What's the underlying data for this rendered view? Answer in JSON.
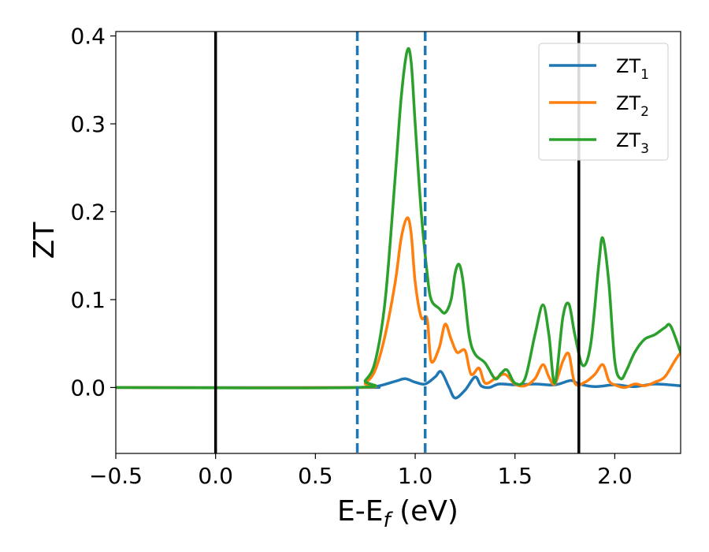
{
  "chart_data": {
    "type": "line",
    "xlabel": "E-E",
    "xlabel_sub": "f",
    "xlabel_unit": " (eV)",
    "ylabel": "ZT",
    "xlim": [
      -0.5,
      2.33
    ],
    "ylim": [
      -0.075,
      0.405
    ],
    "xticks": [
      {
        "value": -0.5,
        "label": "−0.5"
      },
      {
        "value": 0.0,
        "label": "0.0"
      },
      {
        "value": 0.5,
        "label": "0.5"
      },
      {
        "value": 1.0,
        "label": "1.0"
      },
      {
        "value": 1.5,
        "label": "1.5"
      },
      {
        "value": 2.0,
        "label": "2.0"
      }
    ],
    "yticks": [
      {
        "value": 0.0,
        "label": "0.0"
      },
      {
        "value": 0.1,
        "label": "0.1"
      },
      {
        "value": 0.2,
        "label": "0.2"
      },
      {
        "value": 0.3,
        "label": "0.3"
      },
      {
        "value": 0.4,
        "label": "0.4"
      }
    ],
    "grid": false,
    "legend_position": "top-right",
    "vlines": [
      {
        "x": 0.0,
        "color": "#000000",
        "style": "solid"
      },
      {
        "x": 1.82,
        "color": "#000000",
        "style": "solid"
      },
      {
        "x": 0.71,
        "color": "#1f77b4",
        "style": "dashed"
      },
      {
        "x": 1.05,
        "color": "#1f77b4",
        "style": "dashed"
      }
    ],
    "series": [
      {
        "name": "ZT",
        "sub": "1",
        "color": "#1f77b4",
        "x": [
          -0.5,
          0.7,
          0.8,
          0.9,
          0.95,
          1.0,
          1.05,
          1.1,
          1.13,
          1.17,
          1.2,
          1.25,
          1.3,
          1.33,
          1.37,
          1.42,
          1.5,
          1.6,
          1.7,
          1.78,
          1.82,
          1.9,
          2.0,
          2.1,
          2.2,
          2.33
        ],
        "y": [
          0.0,
          0.0,
          0.001,
          0.007,
          0.01,
          0.006,
          0.004,
          0.012,
          0.018,
          0.0,
          -0.012,
          -0.003,
          0.012,
          0.002,
          0.0,
          0.004,
          0.003,
          0.004,
          0.003,
          0.008,
          0.004,
          0.001,
          0.003,
          0.001,
          0.004,
          0.002
        ]
      },
      {
        "name": "ZT",
        "sub": "2",
        "color": "#ff7f0e",
        "x": [
          -0.5,
          0.7,
          0.75,
          0.8,
          0.85,
          0.9,
          0.93,
          0.96,
          0.98,
          1.0,
          1.03,
          1.06,
          1.08,
          1.12,
          1.15,
          1.18,
          1.21,
          1.25,
          1.28,
          1.32,
          1.35,
          1.4,
          1.45,
          1.5,
          1.55,
          1.6,
          1.64,
          1.67,
          1.7,
          1.74,
          1.77,
          1.8,
          1.85,
          1.9,
          1.94,
          1.97,
          2.0,
          2.05,
          2.1,
          2.15,
          2.2,
          2.25,
          2.3,
          2.33
        ],
        "y": [
          0.0,
          0.0,
          0.005,
          0.02,
          0.06,
          0.12,
          0.17,
          0.193,
          0.175,
          0.12,
          0.08,
          0.078,
          0.03,
          0.045,
          0.072,
          0.055,
          0.04,
          0.042,
          0.015,
          0.022,
          0.005,
          0.01,
          0.015,
          0.004,
          0.002,
          0.01,
          0.026,
          0.012,
          0.004,
          0.03,
          0.038,
          0.005,
          0.006,
          0.015,
          0.026,
          0.008,
          0.003,
          0.0,
          0.004,
          0.002,
          0.006,
          0.012,
          0.03,
          0.04
        ]
      },
      {
        "name": "ZT",
        "sub": "3",
        "color": "#2ca02c",
        "x": [
          -0.5,
          0.7,
          0.75,
          0.8,
          0.85,
          0.9,
          0.93,
          0.96,
          0.98,
          1.0,
          1.03,
          1.06,
          1.08,
          1.12,
          1.15,
          1.18,
          1.2,
          1.22,
          1.24,
          1.27,
          1.3,
          1.35,
          1.4,
          1.43,
          1.46,
          1.5,
          1.55,
          1.6,
          1.64,
          1.67,
          1.7,
          1.74,
          1.77,
          1.8,
          1.84,
          1.88,
          1.92,
          1.94,
          1.97,
          2.0,
          2.03,
          2.06,
          2.1,
          2.15,
          2.2,
          2.25,
          2.28,
          2.33
        ],
        "y": [
          0.0,
          0.0,
          0.008,
          0.03,
          0.1,
          0.24,
          0.33,
          0.383,
          0.37,
          0.3,
          0.2,
          0.13,
          0.1,
          0.09,
          0.085,
          0.1,
          0.13,
          0.14,
          0.12,
          0.06,
          0.038,
          0.028,
          0.01,
          0.016,
          0.02,
          0.005,
          0.01,
          0.06,
          0.094,
          0.06,
          0.005,
          0.08,
          0.095,
          0.06,
          0.025,
          0.05,
          0.14,
          0.17,
          0.12,
          0.03,
          0.01,
          0.02,
          0.04,
          0.055,
          0.06,
          0.068,
          0.07,
          0.04
        ]
      }
    ]
  }
}
